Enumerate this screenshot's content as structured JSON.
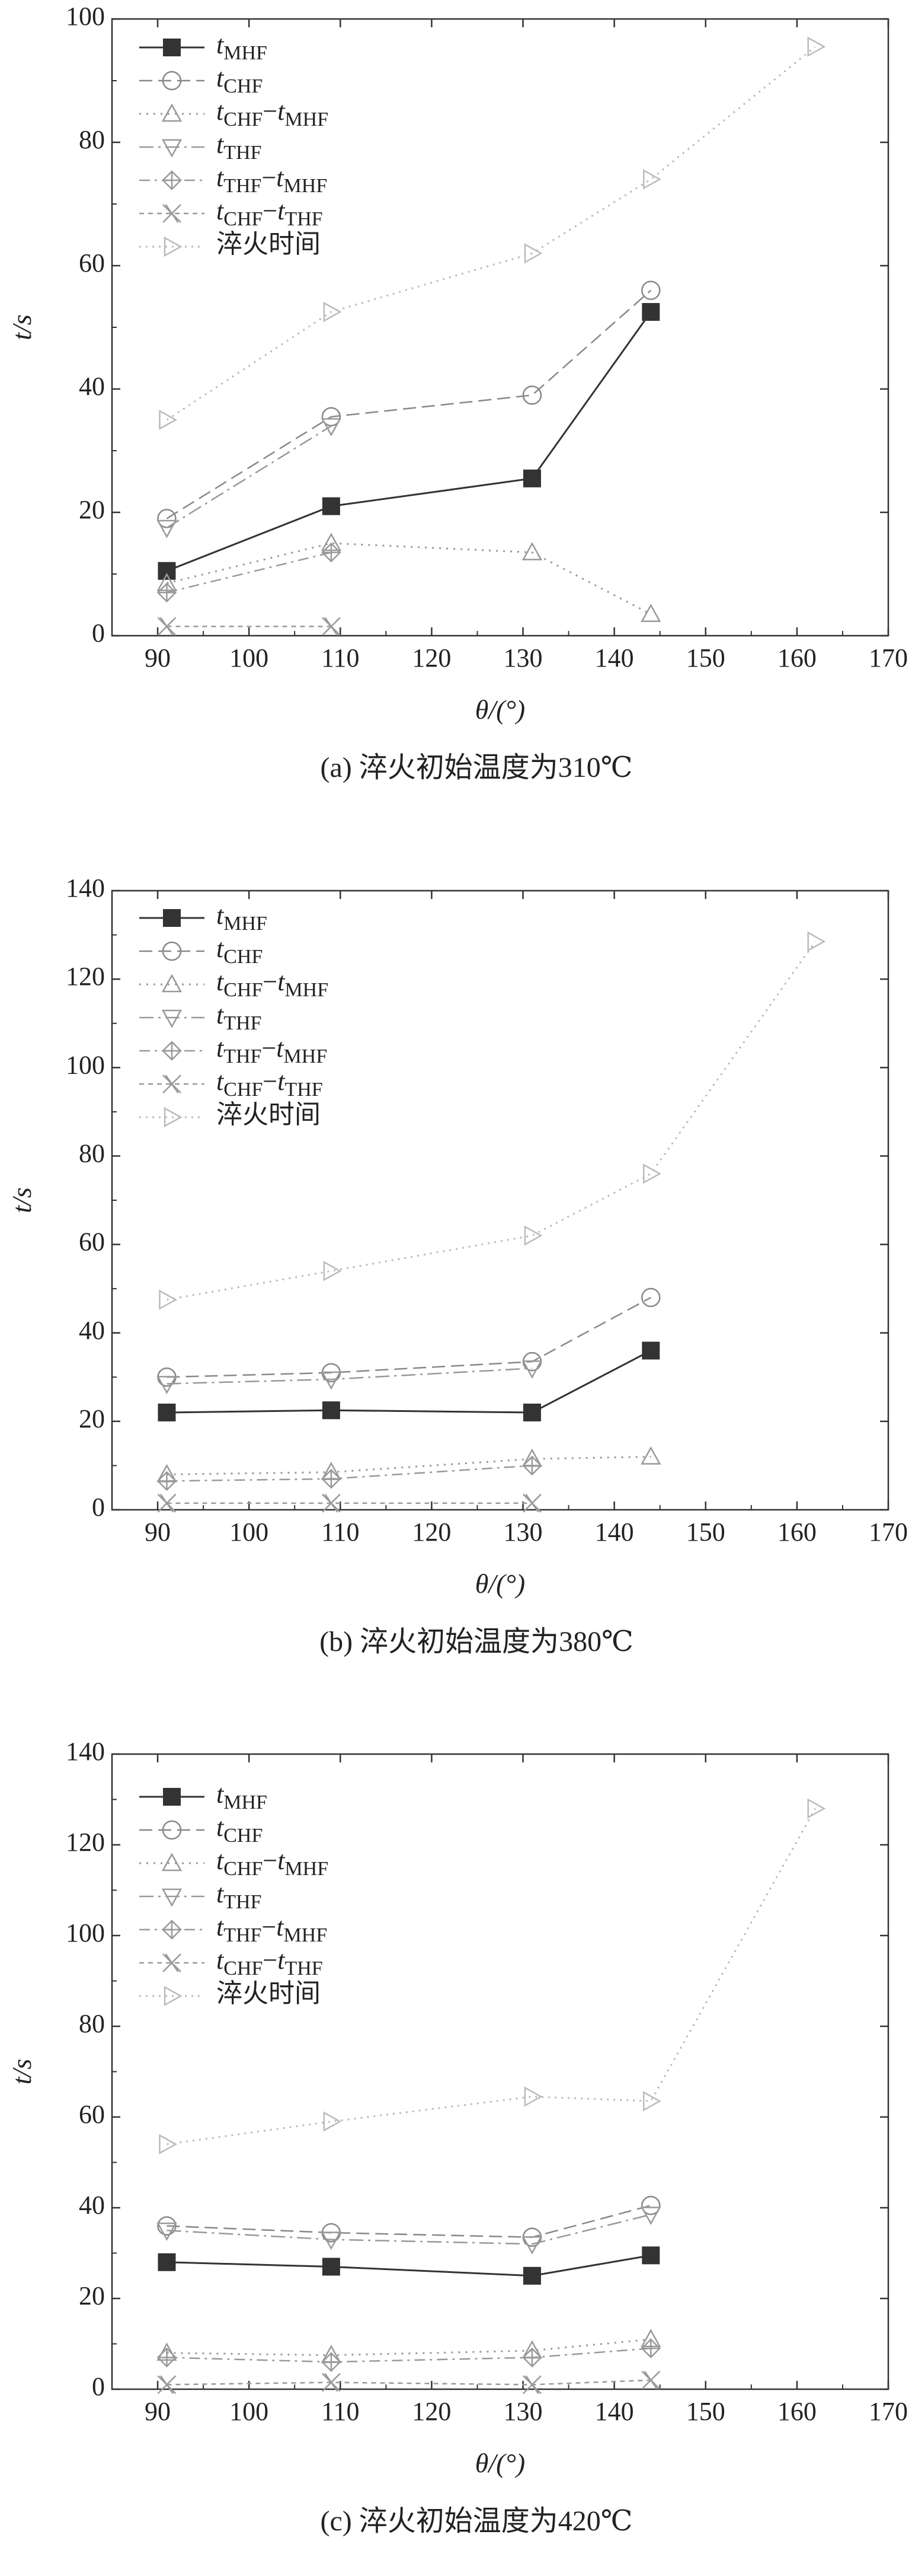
{
  "chart_data": [
    {
      "type": "line",
      "caption": "(a) 淬火初始温度为310℃",
      "xlabel": "θ/(°)",
      "ylabel": "t/s",
      "xlim": [
        85,
        170
      ],
      "ylim": [
        0,
        100
      ],
      "xticks": [
        "90",
        "100",
        "110",
        "120",
        "130",
        "140",
        "150",
        "160",
        "170"
      ],
      "yticks": [
        "0",
        "20",
        "40",
        "60",
        "80",
        "100"
      ],
      "grid": false,
      "legend_position": "top-left",
      "series": [
        {
          "name": "tMHF",
          "x": [
            91,
            109,
            131,
            144
          ],
          "y": [
            10.5,
            21,
            25.5,
            52.5
          ]
        },
        {
          "name": "tCHF",
          "x": [
            91,
            109,
            131,
            144
          ],
          "y": [
            19,
            35.5,
            39,
            56
          ]
        },
        {
          "name": "tCHF−tMHF",
          "x": [
            91,
            109,
            131,
            144
          ],
          "y": [
            8.5,
            15,
            13.5,
            3.5
          ]
        },
        {
          "name": "tTHF",
          "x": [
            91,
            109
          ],
          "y": [
            17.5,
            34
          ]
        },
        {
          "name": "tTHF−tMHF",
          "x": [
            91,
            109
          ],
          "y": [
            7,
            13.5
          ]
        },
        {
          "name": "tCHF−tTHF",
          "x": [
            91,
            109
          ],
          "y": [
            1.5,
            1.5
          ]
        },
        {
          "name": "淬火时间",
          "x": [
            91,
            109,
            131,
            144,
            162
          ],
          "y": [
            35,
            52.5,
            62,
            74,
            95.5
          ]
        }
      ]
    },
    {
      "type": "line",
      "caption": "(b) 淬火初始温度为380℃",
      "xlabel": "θ/(°)",
      "ylabel": "t/s",
      "xlim": [
        85,
        170
      ],
      "ylim": [
        0,
        140
      ],
      "xticks": [
        "90",
        "100",
        "110",
        "120",
        "130",
        "140",
        "150",
        "160",
        "170"
      ],
      "yticks": [
        "0",
        "20",
        "40",
        "60",
        "80",
        "100",
        "120",
        "140"
      ],
      "grid": false,
      "legend_position": "top-left",
      "series": [
        {
          "name": "tMHF",
          "x": [
            91,
            109,
            131,
            144
          ],
          "y": [
            22,
            22.5,
            22,
            36
          ]
        },
        {
          "name": "tCHF",
          "x": [
            91,
            109,
            131,
            144
          ],
          "y": [
            30,
            31,
            33.5,
            48
          ]
        },
        {
          "name": "tCHF−tMHF",
          "x": [
            91,
            109,
            131,
            144
          ],
          "y": [
            8,
            8.5,
            11.5,
            12
          ]
        },
        {
          "name": "tTHF",
          "x": [
            91,
            109,
            131
          ],
          "y": [
            28.5,
            29.5,
            32
          ]
        },
        {
          "name": "tTHF−tMHF",
          "x": [
            91,
            109,
            131
          ],
          "y": [
            6.5,
            7,
            10
          ]
        },
        {
          "name": "tCHF−tTHF",
          "x": [
            91,
            109,
            131
          ],
          "y": [
            1.5,
            1.5,
            1.5
          ]
        },
        {
          "name": "淬火时间",
          "x": [
            91,
            109,
            131,
            144,
            162
          ],
          "y": [
            47.5,
            54,
            62,
            76,
            128.5
          ]
        }
      ]
    },
    {
      "type": "line",
      "caption": "(c) 淬火初始温度为420℃",
      "xlabel": "θ/(°)",
      "ylabel": "t/s",
      "xlim": [
        85,
        170
      ],
      "ylim": [
        0,
        140
      ],
      "xticks": [
        "90",
        "100",
        "110",
        "120",
        "130",
        "140",
        "150",
        "160",
        "170"
      ],
      "yticks": [
        "0",
        "20",
        "40",
        "60",
        "80",
        "100",
        "120",
        "140"
      ],
      "grid": false,
      "legend_position": "top-left",
      "series": [
        {
          "name": "tMHF",
          "x": [
            91,
            109,
            131,
            144
          ],
          "y": [
            28,
            27,
            25,
            29.5
          ]
        },
        {
          "name": "tCHF",
          "x": [
            91,
            109,
            131,
            144
          ],
          "y": [
            36,
            34.5,
            33.5,
            40.5
          ]
        },
        {
          "name": "tCHF−tMHF",
          "x": [
            91,
            109,
            131,
            144
          ],
          "y": [
            8,
            7.5,
            8.5,
            11
          ]
        },
        {
          "name": "tTHF",
          "x": [
            91,
            109,
            131,
            144
          ],
          "y": [
            35,
            33,
            32,
            38.5
          ]
        },
        {
          "name": "tTHF−tMHF",
          "x": [
            91,
            109,
            131,
            144
          ],
          "y": [
            7,
            6,
            7,
            9
          ]
        },
        {
          "name": "tCHF−tTHF",
          "x": [
            91,
            109,
            131,
            144
          ],
          "y": [
            1,
            1.5,
            1,
            2
          ]
        },
        {
          "name": "淬火时间",
          "x": [
            91,
            109,
            131,
            144,
            162
          ],
          "y": [
            54,
            59,
            64.5,
            63.5,
            128
          ]
        }
      ]
    }
  ]
}
